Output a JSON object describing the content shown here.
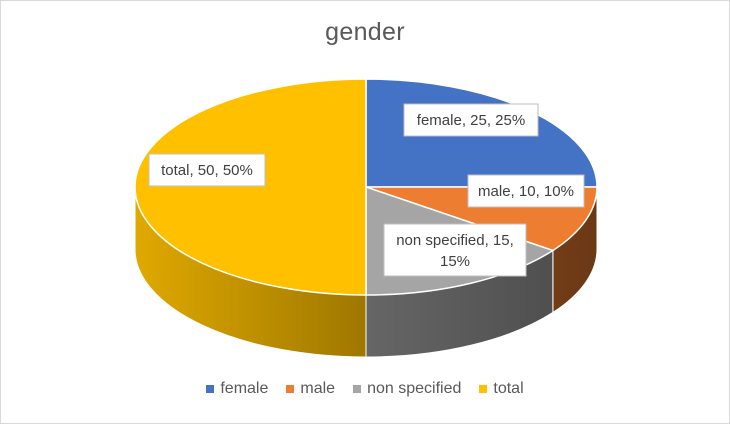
{
  "chart_data": {
    "type": "pie",
    "title": "gender",
    "style": "3d",
    "categories": [
      "female",
      "male",
      "non specified",
      "total"
    ],
    "values": [
      25,
      10,
      15,
      50
    ],
    "percentages": [
      "25%",
      "10%",
      "15%",
      "50%"
    ],
    "data_labels": [
      "female, 25, 25%",
      "male, 10, 10%",
      "non specified, 15, 15%",
      "total, 50, 50%"
    ],
    "colors": [
      "#4472C4",
      "#ED7D31",
      "#A5A5A5",
      "#FFC000"
    ],
    "legend_position": "bottom"
  }
}
